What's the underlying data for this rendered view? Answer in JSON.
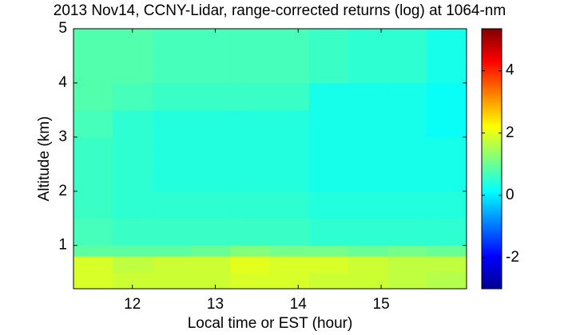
{
  "chart_data": {
    "type": "heatmap",
    "title": "2013 Nov14, CCNY-Lidar, range-corrected returns (log) at 1064-nm",
    "xlabel": "Local time or EST (hour)",
    "ylabel": "Altitude (km)",
    "xbins": [
      11.29,
      11.76,
      12.24,
      12.71,
      13.18,
      13.66,
      14.13,
      14.6,
      15.08,
      15.55,
      16.03
    ],
    "ybins": [
      0.2,
      0.5,
      0.8,
      1.0,
      1.5,
      2.0,
      2.5,
      3.0,
      3.5,
      4.0,
      4.5,
      5.0
    ],
    "values": [
      [
        1.9,
        1.8,
        1.8,
        1.8,
        1.9,
        1.9,
        1.8,
        1.8,
        1.7,
        1.6
      ],
      [
        1.9,
        1.7,
        1.8,
        1.8,
        2.0,
        1.9,
        1.9,
        1.8,
        1.7,
        1.7
      ],
      [
        0.9,
        0.9,
        0.9,
        1.0,
        1.2,
        1.1,
        1.1,
        1.0,
        1.1,
        1.0
      ],
      [
        0.7,
        0.6,
        0.6,
        0.6,
        0.6,
        0.6,
        0.5,
        0.5,
        0.5,
        0.5
      ],
      [
        0.6,
        0.5,
        0.5,
        0.5,
        0.5,
        0.5,
        0.4,
        0.4,
        0.4,
        0.4
      ],
      [
        0.6,
        0.5,
        0.4,
        0.4,
        0.4,
        0.4,
        0.3,
        0.3,
        0.3,
        0.3
      ],
      [
        0.6,
        0.5,
        0.4,
        0.4,
        0.4,
        0.4,
        0.3,
        0.3,
        0.3,
        0.3
      ],
      [
        0.7,
        0.5,
        0.4,
        0.4,
        0.4,
        0.4,
        0.3,
        0.3,
        0.3,
        0.2
      ],
      [
        0.8,
        0.7,
        0.6,
        0.6,
        0.6,
        0.6,
        0.3,
        0.3,
        0.3,
        0.2
      ],
      [
        0.8,
        0.8,
        0.7,
        0.7,
        0.7,
        0.7,
        0.6,
        0.5,
        0.5,
        0.3
      ],
      [
        0.8,
        0.8,
        0.7,
        0.7,
        0.7,
        0.7,
        0.6,
        0.5,
        0.5,
        0.3
      ]
    ],
    "xlim": [
      11.29,
      16.03
    ],
    "xticks": [
      12,
      13,
      14,
      15
    ],
    "ylim": [
      0.2,
      5
    ],
    "yticks": [
      1,
      2,
      3,
      4,
      5
    ],
    "clim": [
      -3,
      5.35
    ],
    "cticks": [
      -2,
      0,
      2,
      4
    ],
    "colormap": "jet"
  }
}
